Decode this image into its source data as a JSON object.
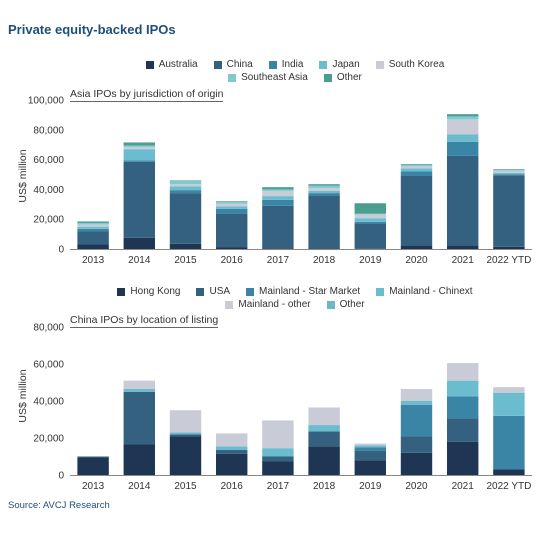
{
  "title": "Private equity-backed IPOs",
  "source": "Source: AVCJ Research",
  "colors": {
    "navy": "#1e3553",
    "blue": "#34617f",
    "teal": "#3a84a6",
    "lightblue": "#6cbcd0",
    "grey": "#c9cbd6",
    "aqua": "#7dcad1",
    "green": "#4b9d90",
    "other2": "#6fb6c6"
  },
  "chart_data": [
    {
      "type": "bar",
      "stacked": true,
      "title": "Asia IPOs by jurisdiction of origin",
      "ylabel": "US$ million",
      "ylim": [
        0,
        100000
      ],
      "yticks": [
        "0",
        "20,000",
        "40,000",
        "60,000",
        "80,000",
        "100,000"
      ],
      "categories": [
        "2013",
        "2014",
        "2015",
        "2016",
        "2017",
        "2018",
        "2019",
        "2020",
        "2021",
        "2022 YTD"
      ],
      "series": [
        {
          "name": "Australia",
          "color": "#1e3553",
          "values": [
            3000,
            7500,
            3500,
            1000,
            500,
            500,
            200,
            2500,
            2500,
            1500
          ]
        },
        {
          "name": "China",
          "color": "#34617f",
          "values": [
            9000,
            51000,
            34000,
            22500,
            28500,
            35500,
            17000,
            46500,
            60000,
            48000
          ]
        },
        {
          "name": "India",
          "color": "#3a84a6",
          "values": [
            1500,
            1000,
            2000,
            3500,
            4000,
            1500,
            1000,
            3000,
            9500,
            500
          ]
        },
        {
          "name": "Japan",
          "color": "#6cbcd0",
          "values": [
            1500,
            7500,
            2500,
            1500,
            2500,
            1500,
            2500,
            2000,
            5000,
            1000
          ]
        },
        {
          "name": "South Korea",
          "color": "#c9cbd6",
          "values": [
            1500,
            1500,
            1500,
            2000,
            3500,
            2000,
            2500,
            1500,
            10000,
            1500
          ]
        },
        {
          "name": "Southeast Asia",
          "color": "#7dcad1",
          "values": [
            1000,
            1000,
            2000,
            1000,
            1000,
            1500,
            500,
            1000,
            2000,
            500
          ]
        },
        {
          "name": "Other",
          "color": "#4b9d90",
          "values": [
            1000,
            2000,
            500,
            500,
            1500,
            1000,
            7000,
            500,
            1500,
            500
          ]
        }
      ]
    },
    {
      "type": "bar",
      "stacked": true,
      "title": "China IPOs by location of listing",
      "ylabel": "US$ million",
      "ylim": [
        0,
        80000
      ],
      "yticks": [
        "0",
        "20,000",
        "40,000",
        "60,000",
        "80,000"
      ],
      "categories": [
        "2013",
        "2014",
        "2015",
        "2016",
        "2017",
        "2018",
        "2019",
        "2020",
        "2021",
        "2022 YTD"
      ],
      "series": [
        {
          "name": "Hong Kong",
          "color": "#1e3553",
          "values": [
            9500,
            16500,
            21000,
            11500,
            7500,
            15500,
            8000,
            12000,
            18000,
            3000
          ]
        },
        {
          "name": "USA",
          "color": "#34617f",
          "values": [
            500,
            28500,
            1000,
            2000,
            2500,
            8000,
            5000,
            9000,
            12500,
            0
          ]
        },
        {
          "name": "Mainland - Star Market",
          "color": "#3a84a6",
          "values": [
            0,
            0,
            0,
            0,
            0,
            0,
            2000,
            17000,
            12000,
            29000
          ]
        },
        {
          "name": "Mainland - Chinext",
          "color": "#6cbcd0",
          "values": [
            0,
            1500,
            1000,
            2000,
            4500,
            3500,
            1000,
            2000,
            8500,
            12500
          ]
        },
        {
          "name": "Mainland - other",
          "color": "#c9cbd6",
          "values": [
            0,
            4500,
            12000,
            7000,
            15000,
            9500,
            1000,
            6500,
            9500,
            3000
          ]
        },
        {
          "name": "Other",
          "color": "#6fb6c6",
          "values": [
            0,
            0,
            0,
            0,
            0,
            0,
            0,
            0,
            0,
            0
          ]
        }
      ]
    }
  ]
}
